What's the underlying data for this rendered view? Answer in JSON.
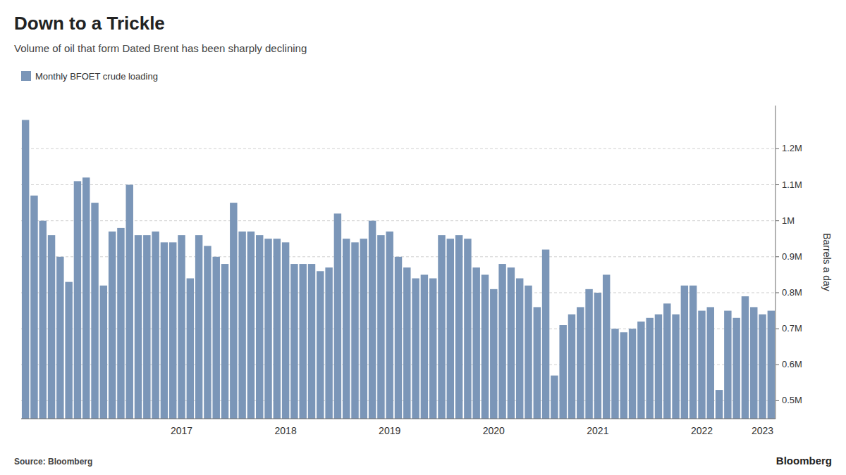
{
  "chart_data": {
    "type": "bar",
    "title": "Down to a Trickle",
    "subtitle": "Volume of oil that form Dated Brent has been sharply declining",
    "ylabel": "Barrels a day",
    "source": "Source: Bloomberg",
    "annotations": [
      "Bloomberg"
    ],
    "categories": [
      null,
      null,
      null,
      null,
      null,
      null,
      null,
      null,
      null,
      null,
      null,
      null,
      null,
      null,
      null,
      null,
      null,
      null,
      "2017",
      null,
      null,
      null,
      null,
      null,
      null,
      null,
      null,
      null,
      null,
      null,
      "2018",
      null,
      null,
      null,
      null,
      null,
      null,
      null,
      null,
      null,
      null,
      null,
      "2019",
      null,
      null,
      null,
      null,
      null,
      null,
      null,
      null,
      null,
      null,
      null,
      "2020",
      null,
      null,
      null,
      null,
      null,
      null,
      null,
      null,
      null,
      null,
      null,
      "2021",
      null,
      null,
      null,
      null,
      null,
      null,
      null,
      null,
      null,
      null,
      null,
      "2022",
      null,
      null,
      null,
      null,
      null,
      null,
      "2023",
      null
    ],
    "series": [
      {
        "name": "Monthly BFOET crude loading",
        "color": "#7b96b8",
        "values": [
          1280000,
          1070000,
          1000000,
          960000,
          900000,
          830000,
          1110000,
          1120000,
          1050000,
          820000,
          970000,
          980000,
          1100000,
          960000,
          960000,
          970000,
          940000,
          940000,
          960000,
          840000,
          960000,
          930000,
          900000,
          880000,
          1050000,
          970000,
          970000,
          960000,
          950000,
          950000,
          940000,
          880000,
          880000,
          880000,
          860000,
          870000,
          1020000,
          950000,
          940000,
          950000,
          1000000,
          960000,
          970000,
          900000,
          870000,
          840000,
          850000,
          840000,
          960000,
          950000,
          960000,
          950000,
          870000,
          850000,
          810000,
          880000,
          870000,
          840000,
          820000,
          760000,
          920000,
          570000,
          710000,
          740000,
          760000,
          810000,
          800000,
          850000,
          700000,
          690000,
          700000,
          720000,
          730000,
          740000,
          770000,
          740000,
          820000,
          820000,
          750000,
          760000,
          530000,
          750000,
          730000,
          790000,
          760000,
          740000,
          750000
        ]
      }
    ],
    "ylim": [
      450000,
      1320000
    ],
    "yticks": [
      {
        "value": 500000,
        "label": "0.5M"
      },
      {
        "value": 600000,
        "label": "0.6M"
      },
      {
        "value": 700000,
        "label": "0.7M"
      },
      {
        "value": 800000,
        "label": "0.8M"
      },
      {
        "value": 900000,
        "label": "0.9M"
      },
      {
        "value": 1000000,
        "label": "1M"
      },
      {
        "value": 1100000,
        "label": "1.1M"
      },
      {
        "value": 1200000,
        "label": "1.2M"
      }
    ],
    "grid": true,
    "legend": "upper left"
  }
}
